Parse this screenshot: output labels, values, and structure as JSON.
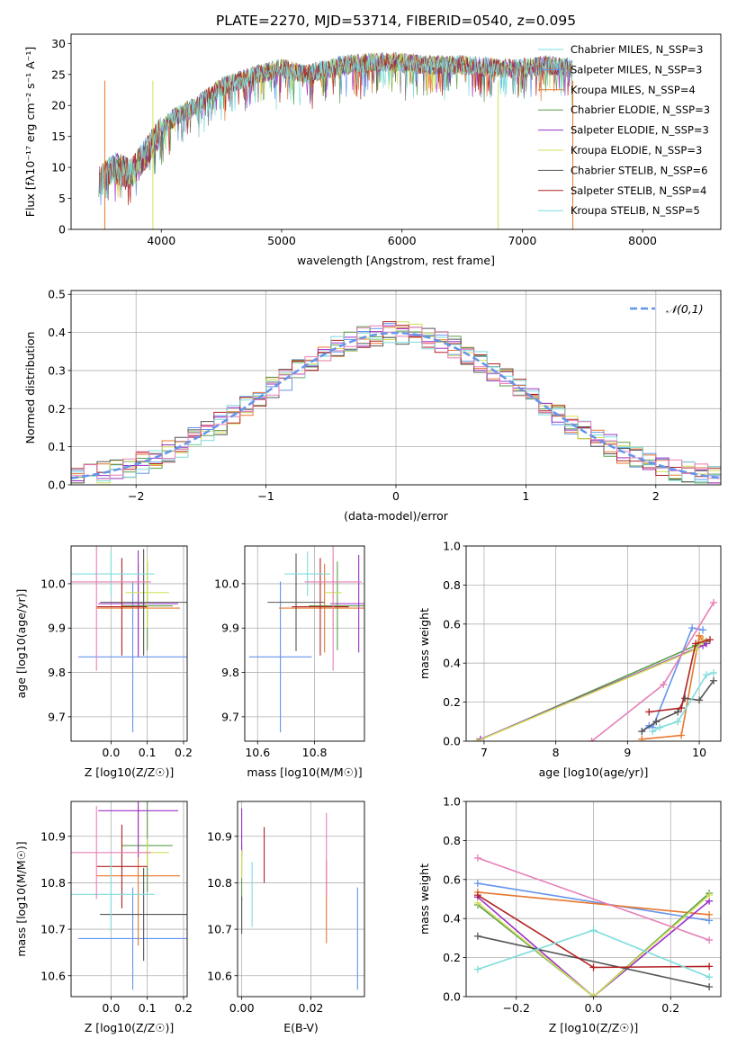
{
  "figure": {
    "title": "PLATE=2270, MJD=53714, FIBERID=0540, z=0.095"
  },
  "colors": {
    "blue": "#6495ed",
    "orange": "#e8772e",
    "green": "#5a9e4b",
    "purple": "#9b30c9",
    "yellow": "#d2e05a",
    "gray": "#555555",
    "red": "#b22222",
    "cyan": "#7fdcdc",
    "pink": "#e77fb8"
  },
  "chart_data": [
    {
      "id": "spectrum",
      "type": "line",
      "xlabel": "wavelength [Angstrom, rest frame]",
      "ylabel": "Flux [fλ10⁻¹⁷ erg cm⁻² s⁻¹ A⁻¹]",
      "xlim": [
        3250,
        8650
      ],
      "ylim": [
        0,
        31.5
      ],
      "xticks": [
        4000,
        5000,
        6000,
        7000,
        8000
      ],
      "yticks": [
        0,
        5,
        10,
        15,
        20,
        25,
        30
      ],
      "legend": "top-right",
      "spectrum_outline": {
        "x": [
          3480,
          3600,
          3750,
          3900,
          4000,
          4100,
          4300,
          4500,
          4800,
          5000,
          5200,
          5500,
          5800,
          6000,
          6200,
          6500,
          6800,
          7000,
          7200,
          7420
        ],
        "y": [
          7.5,
          10,
          9,
          13,
          16,
          18,
          20,
          23,
          25,
          26,
          25,
          26.5,
          27,
          27,
          26.5,
          26.5,
          26,
          26,
          26.5,
          26
        ]
      },
      "series": [
        {
          "name": "Chabrier MILES, N_SSP=3",
          "color": "cyan"
        },
        {
          "name": "Salpeter MILES, N_SSP=3",
          "color": "blue"
        },
        {
          "name": "Kroupa MILES, N_SSP=4",
          "color": "orange"
        },
        {
          "name": "Chabrier ELODIE, N_SSP=3",
          "color": "green"
        },
        {
          "name": "Salpeter ELODIE, N_SSP=3",
          "color": "purple"
        },
        {
          "name": "Kroupa ELODIE, N_SSP=3",
          "color": "yellow"
        },
        {
          "name": "Chabrier STELIB, N_SSP=6",
          "color": "gray"
        },
        {
          "name": "Salpeter STELIB, N_SSP=4",
          "color": "red"
        },
        {
          "name": "Kroupa STELIB, N_SSP=5",
          "color": "cyan"
        }
      ]
    },
    {
      "id": "residuals",
      "type": "line",
      "xlabel": "(data-model)/error",
      "ylabel": "Normed distribution",
      "xlim": [
        -2.5,
        2.5
      ],
      "ylim": [
        0,
        0.51
      ],
      "xticks": [
        -2,
        -1,
        0,
        1,
        2
      ],
      "yticks": [
        0.0,
        0.1,
        0.2,
        0.3,
        0.4,
        0.5
      ],
      "grid": true,
      "legend": "top-right",
      "reference": {
        "name": "𝒩(0,1)",
        "mu": 0,
        "sigma": 1,
        "color": "blue"
      },
      "bins": {
        "start": -2.5,
        "width": 0.1,
        "count": 50
      },
      "hist_colors": [
        "blue",
        "orange",
        "green",
        "purple",
        "yellow",
        "gray",
        "red",
        "cyan",
        "pink"
      ]
    },
    {
      "id": "age_vs_Z",
      "type": "scatter",
      "xlabel": "Z [log10(Z/Z☉)]",
      "ylabel": "age  [log10(age/yr)]",
      "xlim": [
        -0.11,
        0.21
      ],
      "ylim": [
        9.645,
        10.085
      ],
      "xticks": [
        0.0,
        0.1,
        0.2
      ],
      "yticks": [
        9.7,
        9.8,
        9.9,
        10.0
      ],
      "grid": true,
      "points": [
        {
          "x": 0.06,
          "y": 9.835,
          "xerr": 0.15,
          "yerr": 0.17,
          "color": "blue"
        },
        {
          "x": 0.075,
          "y": 9.945,
          "xerr": 0.115,
          "yerr": 0.1,
          "color": "orange"
        },
        {
          "x": 0.1,
          "y": 9.95,
          "xerr": 0.07,
          "yerr": 0.1,
          "color": "green"
        },
        {
          "x": 0.075,
          "y": 9.955,
          "xerr": 0.11,
          "yerr": 0.12,
          "color": "purple"
        },
        {
          "x": 0.1,
          "y": 9.98,
          "xerr": 0.06,
          "yerr": 0.08,
          "color": "yellow"
        },
        {
          "x": 0.09,
          "y": 9.958,
          "xerr": 0.12,
          "yerr": 0.12,
          "color": "gray"
        },
        {
          "x": 0.03,
          "y": 9.948,
          "xerr": 0.07,
          "yerr": 0.11,
          "color": "red"
        },
        {
          "x": 0.0,
          "y": 10.022,
          "xerr": 0.12,
          "yerr": 0.05,
          "color": "cyan"
        },
        {
          "x": -0.04,
          "y": 10.004,
          "xerr": 0.15,
          "yerr": 0.2,
          "color": "pink"
        }
      ]
    },
    {
      "id": "age_vs_mass",
      "type": "scatter",
      "xlabel": "mass [log10(M/M☉)]",
      "ylabel": "",
      "xlim": [
        10.555,
        10.975
      ],
      "ylim": [
        9.645,
        10.085
      ],
      "xticks": [
        10.6,
        10.8
      ],
      "yticks": [
        9.7,
        9.8,
        9.9,
        10.0
      ],
      "grid": true,
      "points": [
        {
          "x": 10.68,
          "y": 9.835,
          "xerr": 0.11,
          "yerr": 0.17,
          "color": "blue"
        },
        {
          "x": 10.835,
          "y": 9.945,
          "xerr": 0.16,
          "yerr": 0.1,
          "color": "orange"
        },
        {
          "x": 10.88,
          "y": 9.95,
          "xerr": 0.1,
          "yerr": 0.1,
          "color": "green"
        },
        {
          "x": 10.955,
          "y": 9.955,
          "xerr": 0.1,
          "yerr": 0.11,
          "color": "purple"
        },
        {
          "x": 10.865,
          "y": 9.98,
          "xerr": 0.03,
          "yerr": 0.08,
          "color": "yellow"
        },
        {
          "x": 10.735,
          "y": 9.958,
          "xerr": 0.1,
          "yerr": 0.11,
          "color": "gray"
        },
        {
          "x": 10.82,
          "y": 9.948,
          "xerr": 0.1,
          "yerr": 0.11,
          "color": "red"
        },
        {
          "x": 10.775,
          "y": 10.022,
          "xerr": 0.08,
          "yerr": 0.05,
          "color": "cyan"
        },
        {
          "x": 10.865,
          "y": 10.004,
          "xerr": 0.1,
          "yerr": 0.2,
          "color": "pink"
        }
      ]
    },
    {
      "id": "mass_weight_vs_age",
      "type": "line",
      "xlabel": "age  [log10(age/yr)]",
      "ylabel": "mass weight",
      "xlim": [
        6.75,
        10.3
      ],
      "ylim": [
        0,
        1.0
      ],
      "xticks": [
        7,
        8,
        9,
        10
      ],
      "yticks": [
        0.0,
        0.2,
        0.4,
        0.6,
        0.8,
        1.0
      ],
      "grid": true,
      "series": [
        {
          "color": "blue",
          "x": [
            9.2,
            9.3,
            9.35,
            9.9,
            10.05
          ],
          "y": [
            0.05,
            0.08,
            0.07,
            0.58,
            0.57
          ]
        },
        {
          "color": "orange",
          "x": [
            9.2,
            9.75,
            10.0,
            10.05
          ],
          "y": [
            0.01,
            0.03,
            0.54,
            0.52
          ]
        },
        {
          "color": "green",
          "x": [
            6.9,
            9.95,
            10.1
          ],
          "y": [
            0.0,
            0.49,
            0.51
          ]
        },
        {
          "color": "purple",
          "x": [
            6.95,
            10.05,
            10.1
          ],
          "y": [
            0.01,
            0.49,
            0.5
          ]
        },
        {
          "color": "yellow",
          "x": [
            6.9,
            9.95,
            10.05
          ],
          "y": [
            0.0,
            0.47,
            0.51
          ]
        },
        {
          "color": "gray",
          "x": [
            9.2,
            9.4,
            9.7,
            9.8,
            10.0,
            10.2
          ],
          "y": [
            0.05,
            0.1,
            0.15,
            0.22,
            0.21,
            0.31
          ]
        },
        {
          "color": "red",
          "x": [
            9.3,
            9.75,
            9.95,
            10.15
          ],
          "y": [
            0.15,
            0.17,
            0.5,
            0.52
          ]
        },
        {
          "color": "cyan",
          "x": [
            9.35,
            9.45,
            9.7,
            10.1,
            10.2
          ],
          "y": [
            0.05,
            0.07,
            0.1,
            0.34,
            0.35
          ]
        },
        {
          "color": "pink",
          "x": [
            8.5,
            9.5,
            10.2
          ],
          "y": [
            0.0,
            0.29,
            0.71
          ]
        }
      ]
    },
    {
      "id": "mass_vs_Z",
      "type": "scatter",
      "xlabel": "Z [log10(Z/Z☉)]",
      "ylabel": "mass [log10(M/M☉)]",
      "xlim": [
        -0.11,
        0.21
      ],
      "ylim": [
        10.555,
        10.975
      ],
      "xticks": [
        0.0,
        0.1,
        0.2
      ],
      "yticks": [
        10.6,
        10.7,
        10.8,
        10.9
      ],
      "grid": true,
      "points": [
        {
          "x": 0.06,
          "y": 10.68,
          "xerr": 0.15,
          "yerr": 0.11,
          "color": "blue"
        },
        {
          "x": 0.075,
          "y": 10.815,
          "xerr": 0.115,
          "yerr": 0.15,
          "color": "orange"
        },
        {
          "x": 0.1,
          "y": 10.88,
          "xerr": 0.07,
          "yerr": 0.1,
          "color": "green"
        },
        {
          "x": 0.075,
          "y": 10.955,
          "xerr": 0.11,
          "yerr": 0.1,
          "color": "purple"
        },
        {
          "x": 0.1,
          "y": 10.865,
          "xerr": 0.06,
          "yerr": 0.03,
          "color": "yellow"
        },
        {
          "x": 0.09,
          "y": 10.732,
          "xerr": 0.12,
          "yerr": 0.1,
          "color": "gray"
        },
        {
          "x": 0.03,
          "y": 10.835,
          "xerr": 0.07,
          "yerr": 0.09,
          "color": "red"
        },
        {
          "x": 0.0,
          "y": 10.775,
          "xerr": 0.12,
          "yerr": 0.08,
          "color": "cyan"
        },
        {
          "x": -0.04,
          "y": 10.865,
          "xerr": 0.15,
          "yerr": 0.1,
          "color": "pink"
        }
      ]
    },
    {
      "id": "mass_vs_ebv",
      "type": "scatter",
      "xlabel": "E(B-V)",
      "ylabel": "",
      "xlim": [
        -0.0012,
        0.0355
      ],
      "ylim": [
        10.555,
        10.975
      ],
      "xticks": [
        0.0,
        0.02
      ],
      "yticks": [
        10.6,
        10.7,
        10.8,
        10.9
      ],
      "grid": true,
      "points": [
        {
          "x": 0.0335,
          "y": 10.68,
          "xerr": 0,
          "yerr": 0.11,
          "color": "blue"
        },
        {
          "x": 0.0245,
          "y": 10.76,
          "xerr": 0,
          "yerr": 0.09,
          "color": "orange"
        },
        {
          "x": 0.0,
          "y": 10.82,
          "xerr": 0,
          "yerr": 0.06,
          "color": "green"
        },
        {
          "x": 0.0,
          "y": 10.91,
          "xerr": 0,
          "yerr": 0.05,
          "color": "purple"
        },
        {
          "x": 0.0,
          "y": 10.84,
          "xerr": 0,
          "yerr": 0.03,
          "color": "yellow"
        },
        {
          "x": 0.0,
          "y": 10.73,
          "xerr": 0,
          "yerr": 0.04,
          "color": "gray"
        },
        {
          "x": 0.0065,
          "y": 10.86,
          "xerr": 0,
          "yerr": 0.06,
          "color": "red"
        },
        {
          "x": 0.003,
          "y": 10.775,
          "xerr": 0,
          "yerr": 0.07,
          "color": "cyan"
        },
        {
          "x": 0.0245,
          "y": 10.86,
          "xerr": 0,
          "yerr": 0.09,
          "color": "pink"
        }
      ]
    },
    {
      "id": "mass_weight_vs_Z",
      "type": "line",
      "xlabel": "Z [log10(Z/Z☉)]",
      "ylabel": "mass weight",
      "xlim": [
        -0.33,
        0.33
      ],
      "ylim": [
        0,
        1.0
      ],
      "xticks": [
        -0.2,
        0.0,
        0.2
      ],
      "yticks": [
        0.0,
        0.2,
        0.4,
        0.6,
        0.8,
        1.0
      ],
      "grid": true,
      "series": [
        {
          "color": "blue",
          "x": [
            -0.3,
            0.3
          ],
          "y": [
            0.58,
            0.39
          ]
        },
        {
          "color": "orange",
          "x": [
            -0.3,
            0.3
          ],
          "y": [
            0.535,
            0.42
          ]
        },
        {
          "color": "green",
          "x": [
            -0.3,
            0.0,
            0.3
          ],
          "y": [
            0.47,
            0.0,
            0.53
          ]
        },
        {
          "color": "purple",
          "x": [
            -0.3,
            0.0,
            0.3
          ],
          "y": [
            0.51,
            0.0,
            0.49
          ]
        },
        {
          "color": "yellow",
          "x": [
            -0.3,
            0.0,
            0.3
          ],
          "y": [
            0.48,
            0.0,
            0.52
          ]
        },
        {
          "color": "gray",
          "x": [
            -0.3,
            0.3
          ],
          "y": [
            0.31,
            0.05
          ]
        },
        {
          "color": "red",
          "x": [
            -0.3,
            0.0,
            0.3
          ],
          "y": [
            0.52,
            0.15,
            0.155
          ]
        },
        {
          "color": "cyan",
          "x": [
            -0.3,
            0.0,
            0.3
          ],
          "y": [
            0.14,
            0.34,
            0.1
          ]
        },
        {
          "color": "pink",
          "x": [
            -0.3,
            0.3
          ],
          "y": [
            0.71,
            0.29
          ]
        }
      ]
    }
  ]
}
